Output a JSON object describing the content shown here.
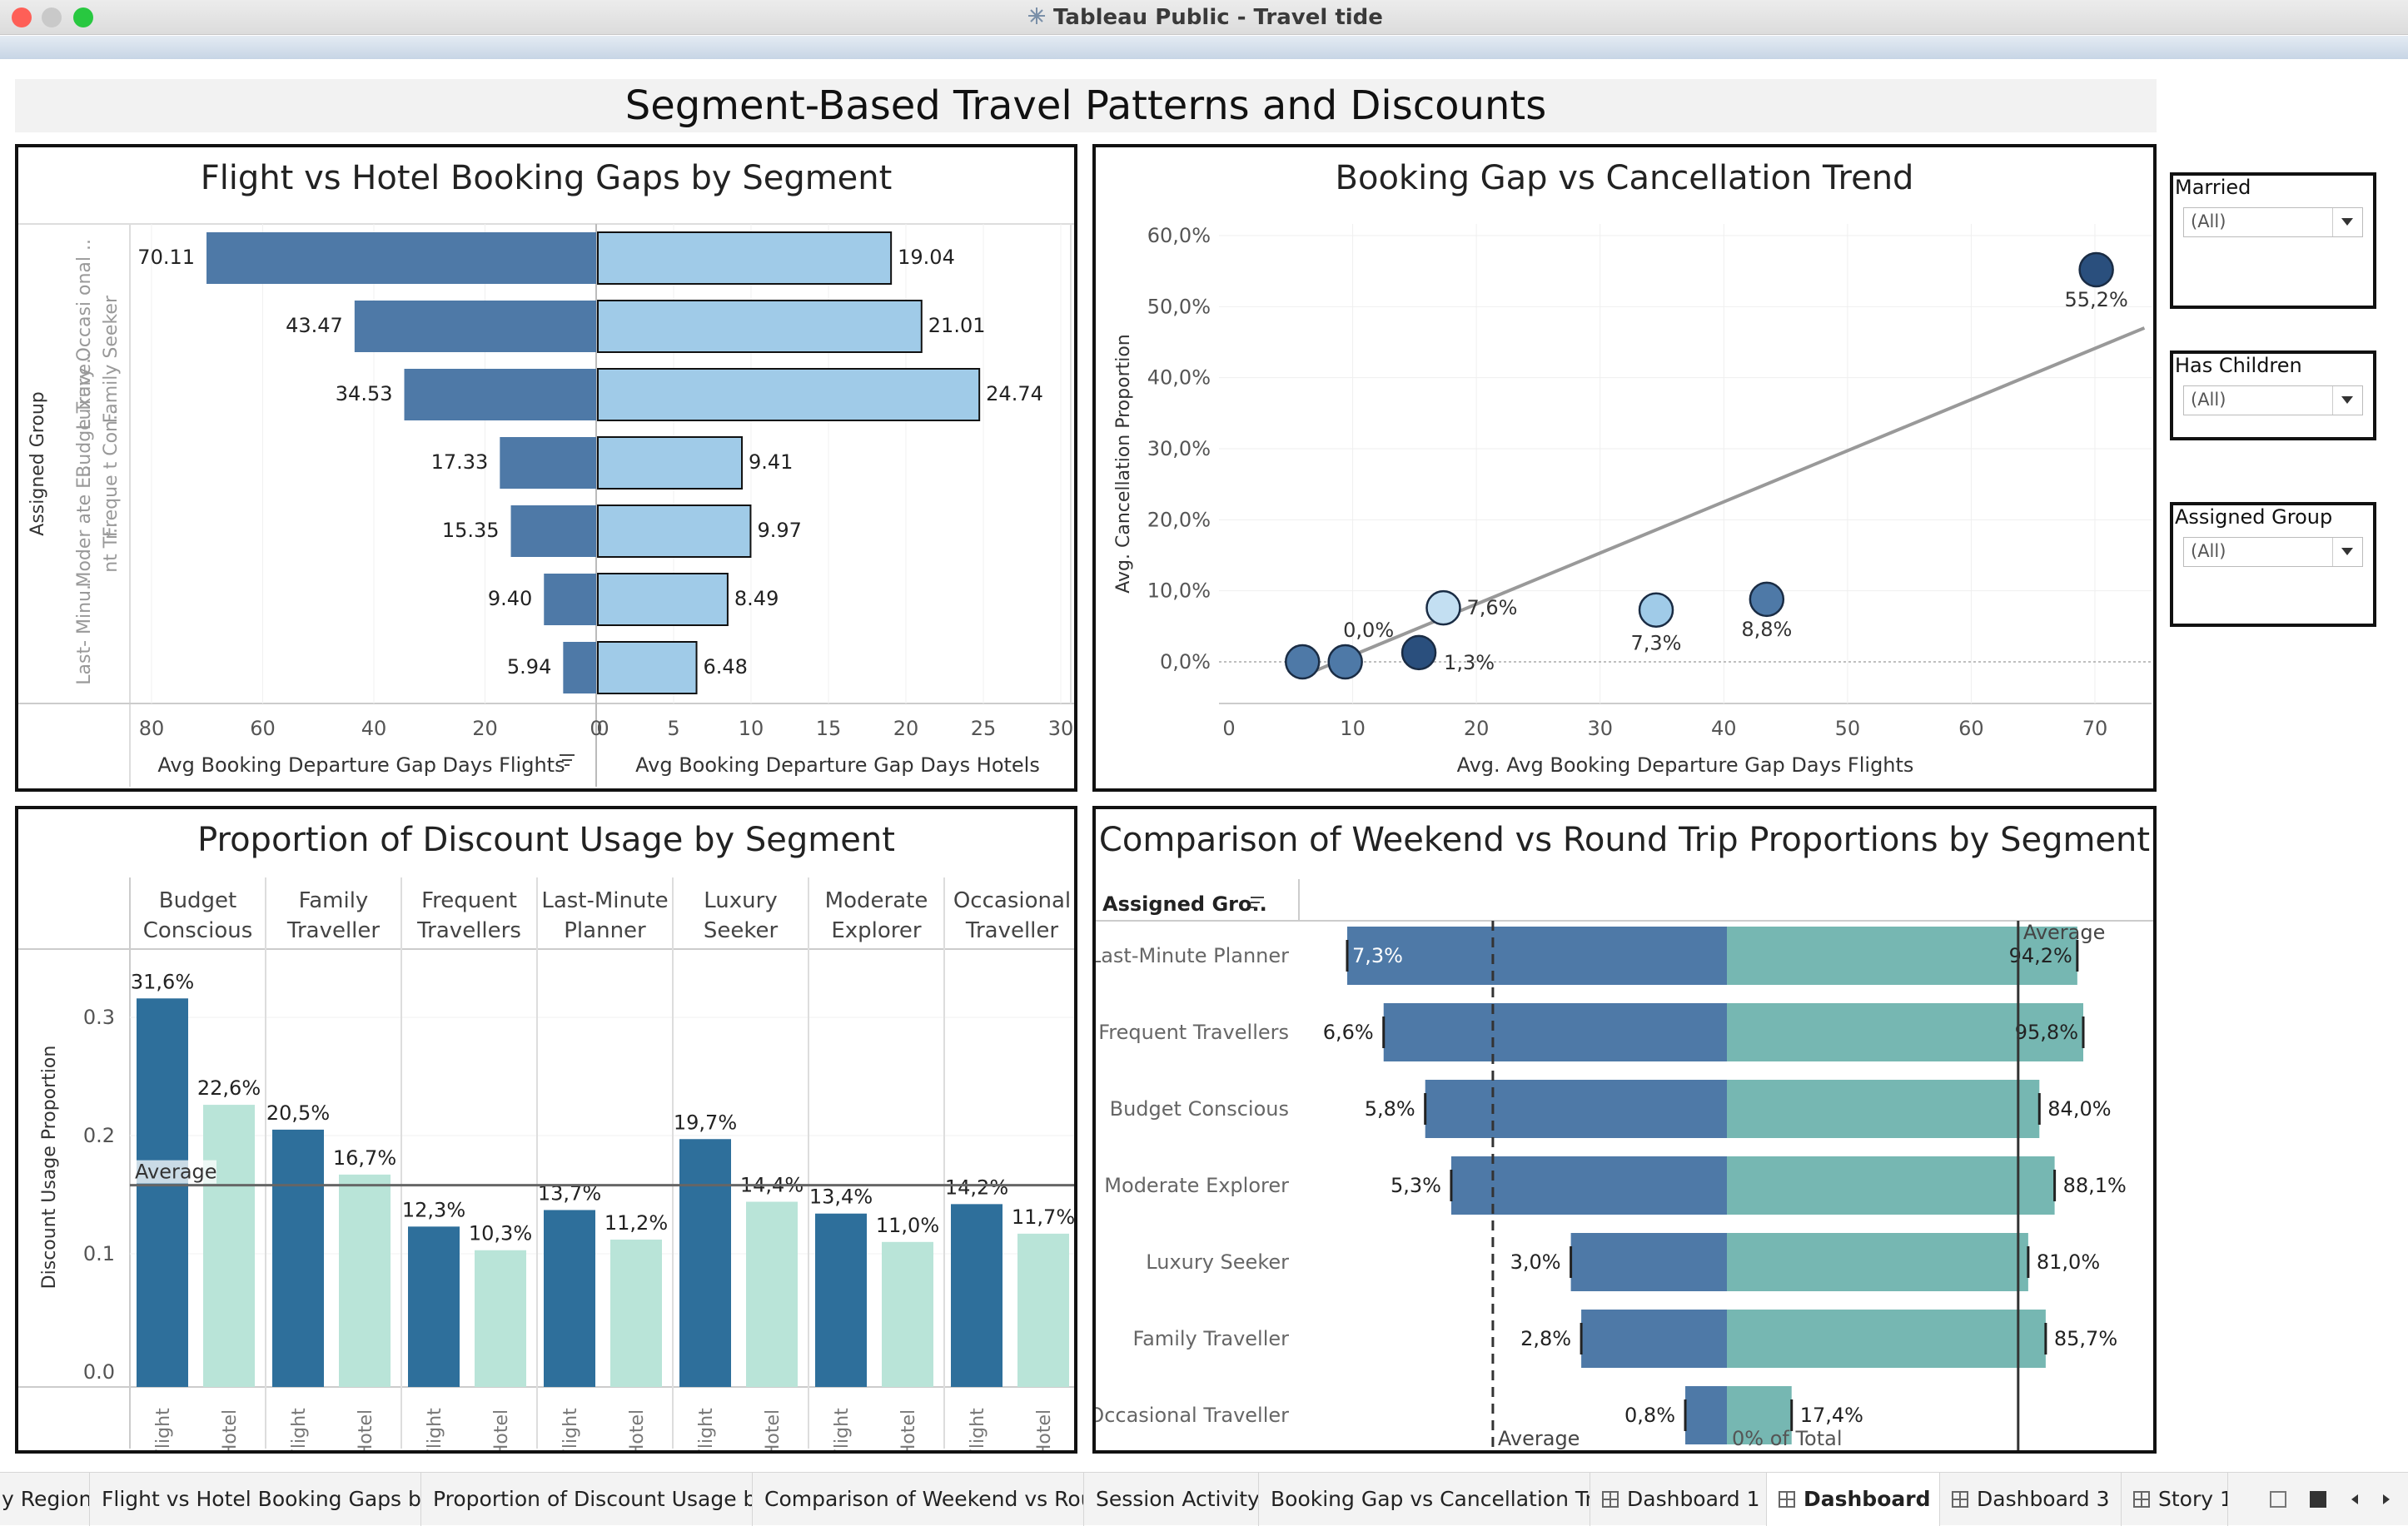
{
  "window": {
    "title": "Tableau Public - Travel tide",
    "traffic_colors": [
      "#fe5f57",
      "#c9c9c9",
      "#28c840"
    ]
  },
  "dashboard": {
    "title": "Segment-Based Travel Patterns and Discounts"
  },
  "filters": [
    {
      "label": "Married",
      "value": "(All)"
    },
    {
      "label": "Has Children",
      "value": "(All)"
    },
    {
      "label": "Assigned Group",
      "value": "(All)"
    }
  ],
  "tabs": [
    {
      "label": "y Region",
      "active": false,
      "icon": ""
    },
    {
      "label": "Flight vs Hotel Booking Gaps by ...",
      "active": false,
      "icon": ""
    },
    {
      "label": "Proportion of Discount Usage by...",
      "active": false,
      "icon": ""
    },
    {
      "label": "Comparison of Weekend vs Rou...",
      "active": false,
      "icon": ""
    },
    {
      "label": "Session Activity",
      "active": false,
      "icon": ""
    },
    {
      "label": "Booking Gap vs Cancellation Tre...",
      "active": false,
      "icon": ""
    },
    {
      "label": "Dashboard 1",
      "active": false,
      "icon": "dashboard-icon"
    },
    {
      "label": "Dashboard 2",
      "active": true,
      "icon": "dashboard-icon"
    },
    {
      "label": "Dashboard 3",
      "active": false,
      "icon": "dashboard-icon"
    },
    {
      "label": "Story 1",
      "active": false,
      "icon": "story-icon"
    }
  ],
  "colors": {
    "flight_dark": "#4e79a7",
    "hotel_light": "#a0cbe8",
    "discount_flight": "#2e6f9b",
    "discount_hotel": "#b9e4d8",
    "round_trip": "#76b7b2",
    "scatter_dark": "#2a4f7d",
    "scatter_mid": "#4e79a7",
    "scatter_light": "#a0cbe8"
  },
  "chart_data": [
    {
      "id": "booking-gaps",
      "type": "bar",
      "title": "Flight vs Hotel Booking Gaps by Segment",
      "row_header": "Assigned Group",
      "categories": [
        "Luxury Occasi onal ..",
        "Family Seeker",
        "Budge Trave..",
        "Freque t Con..",
        "Moder ate E..",
        "nt Tr..",
        "Last- Minu.."
      ],
      "series": [
        {
          "name": "Avg Booking Departure Gap Days Flights",
          "values": [
            70.11,
            43.47,
            34.53,
            17.33,
            15.35,
            9.4,
            5.94
          ],
          "labels": [
            "70.11",
            "43.47",
            "34.53",
            "17.33",
            "15.35",
            "9.40",
            "5.94"
          ]
        },
        {
          "name": "Avg Booking Departure Gap Days Hotels",
          "values": [
            19.04,
            21.01,
            24.74,
            9.41,
            9.97,
            8.49,
            6.48
          ],
          "labels": [
            "19.04",
            "21.01",
            "24.74",
            "9.41",
            "9.97",
            "8.49",
            "6.48"
          ]
        }
      ],
      "left_axis": {
        "label": "Avg Booking Departure Gap Days Flights",
        "ticks": [
          "80",
          "60",
          "40",
          "20",
          "0"
        ],
        "range": [
          0,
          80
        ]
      },
      "right_axis": {
        "label": "Avg Booking Departure Gap Days Hotels",
        "ticks": [
          "0",
          "5",
          "10",
          "15",
          "20",
          "25",
          "30"
        ],
        "range": [
          0,
          30
        ]
      }
    },
    {
      "id": "gap-vs-cancellation",
      "type": "scatter",
      "title": "Booking Gap vs Cancellation Trend",
      "xlabel": "Avg. Avg Booking Departure Gap Days Flights",
      "ylabel": "Avg. Cancellation Proportion",
      "x_ticks": [
        "0",
        "10",
        "20",
        "30",
        "40",
        "50",
        "60",
        "70"
      ],
      "y_ticks": [
        "0,0%",
        "10,0%",
        "20,0%",
        "30,0%",
        "40,0%",
        "50,0%",
        "60,0%"
      ],
      "xlim": [
        0,
        74
      ],
      "ylim": [
        -5,
        62
      ],
      "points": [
        {
          "x": 70.11,
          "y": 55.2,
          "label": "55,2%",
          "shade": "dark"
        },
        {
          "x": 43.47,
          "y": 8.8,
          "label": "8,8%",
          "shade": "mid"
        },
        {
          "x": 34.53,
          "y": 7.3,
          "label": "7,3%",
          "shade": "light"
        },
        {
          "x": 17.33,
          "y": 7.6,
          "label": "7,6%",
          "shade": "lightest"
        },
        {
          "x": 15.35,
          "y": 1.3,
          "label": "1,3%",
          "shade": "dark"
        },
        {
          "x": 9.4,
          "y": 0.0,
          "label": "0,0%",
          "shade": "mid"
        },
        {
          "x": 5.94,
          "y": 0.0,
          "label": "",
          "shade": "mid"
        }
      ],
      "trend_line": {
        "from": [
          5.94,
          -2.0
        ],
        "to": [
          74,
          47.0
        ]
      }
    },
    {
      "id": "discount-usage",
      "type": "bar",
      "title": "Proportion of Discount Usage by Segment",
      "ylabel": "Discount Usage Proportion",
      "y_ticks": [
        "0.0",
        "0.1",
        "0.2",
        "0.3"
      ],
      "ylim": [
        0,
        0.34
      ],
      "reference_line": {
        "label": "Average",
        "value": 0.158
      },
      "categories": [
        "Budget Conscious",
        "Family Traveller",
        "Frequent Travellers",
        "Last-Minute Planner",
        "Luxury Seeker",
        "Moderate Explorer",
        "Occasional Traveller"
      ],
      "sub_categories": [
        "Flight",
        "Hotel"
      ],
      "series": [
        {
          "name": "Flight",
          "values": [
            0.316,
            0.205,
            0.123,
            0.137,
            0.197,
            0.134,
            0.142
          ],
          "labels": [
            "31,6%",
            "20,5%",
            "12,3%",
            "13,7%",
            "19,7%",
            "13,4%",
            "14,2%"
          ]
        },
        {
          "name": "Hotel",
          "values": [
            0.226,
            0.167,
            0.103,
            0.112,
            0.144,
            0.11,
            0.117
          ],
          "labels": [
            "22,6%",
            "16,7%",
            "10,3%",
            "11,2%",
            "14,4%",
            "11,0%",
            "11,7%"
          ]
        }
      ]
    },
    {
      "id": "weekend-vs-round-trip",
      "type": "bar",
      "title": "Comparison of Weekend vs Round Trip Proportions by Segment",
      "row_header": "Assigned Gro..",
      "categories": [
        "Last-Minute Planner",
        "Frequent Travellers",
        "Budget Conscious",
        "Moderate Explorer",
        "Luxury Seeker",
        "Family Traveller",
        "Occasional Traveller"
      ],
      "series": [
        {
          "name": "Weekend",
          "values": [
            7.3,
            6.6,
            5.8,
            5.3,
            3.0,
            2.8,
            0.8
          ],
          "labels": [
            "7,3%",
            "6,6%",
            "5,8%",
            "5,3%",
            "3,0%",
            "2,8%",
            "0,8%"
          ]
        },
        {
          "name": "Round Trip",
          "values": [
            94.2,
            95.8,
            84.0,
            88.1,
            81.0,
            85.7,
            17.4
          ],
          "labels": [
            "94,2%",
            "95,8%",
            "84,0%",
            "88,1%",
            "81,0%",
            "85,7%",
            "17,4%"
          ]
        }
      ],
      "left_reference": {
        "label": "Average",
        "value": 4.5
      },
      "right_reference": {
        "label": "Average",
        "value": 78.3
      },
      "total_label": "0% of Total"
    }
  ]
}
